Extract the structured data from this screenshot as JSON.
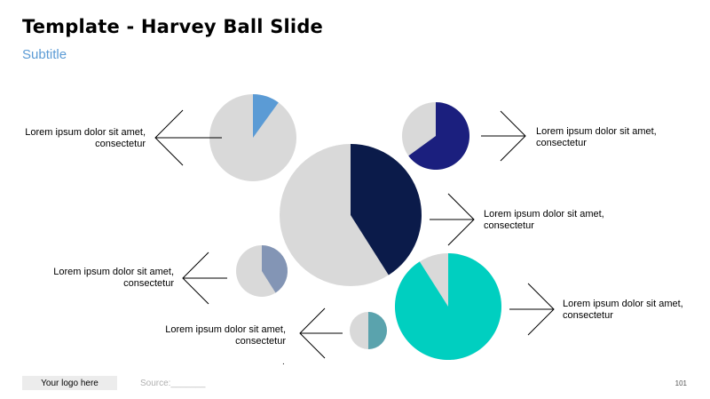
{
  "slide": {
    "title": "Template - Harvey Ball Slide",
    "subtitle": "Subtitle",
    "logo_text": "Your logo here",
    "source_text": "Source:_______",
    "page_number": "101",
    "dot": "."
  },
  "colors": {
    "ball_background": "#d9d9d9",
    "arrow": "#000000",
    "light_blue": "#5b9bd5",
    "dark_blue": "#1b1f7e",
    "navy": "#0b1b4a",
    "slate": "#8395b5",
    "teal": "#00cfc0",
    "steel_teal": "#5aa3ad"
  },
  "harvey_balls": [
    {
      "id": "top-left-ball",
      "fill_fraction": 0.1,
      "color_key": "light_blue",
      "label": "Lorem ipsum dolor sit amet, consectetur",
      "arrow_direction": "left"
    },
    {
      "id": "top-right-ball",
      "fill_fraction": 0.65,
      "color_key": "dark_blue",
      "label": "Lorem ipsum dolor sit amet, consectetur",
      "arrow_direction": "right"
    },
    {
      "id": "center-ball",
      "fill_fraction": 0.41,
      "color_key": "navy",
      "label": "Lorem ipsum dolor sit amet, consectetur",
      "arrow_direction": "right"
    },
    {
      "id": "mid-left-ball",
      "fill_fraction": 0.41,
      "color_key": "slate",
      "label": "Lorem ipsum dolor sit amet, consectetur",
      "arrow_direction": "left"
    },
    {
      "id": "bottom-right-ball",
      "fill_fraction": 0.91,
      "color_key": "teal",
      "label": "Lorem ipsum dolor sit amet, consectetur",
      "arrow_direction": "right"
    },
    {
      "id": "bottom-left-ball",
      "fill_fraction": 0.5,
      "color_key": "steel_teal",
      "label": "Lorem ipsum dolor sit amet, consectetur",
      "arrow_direction": "left"
    }
  ]
}
